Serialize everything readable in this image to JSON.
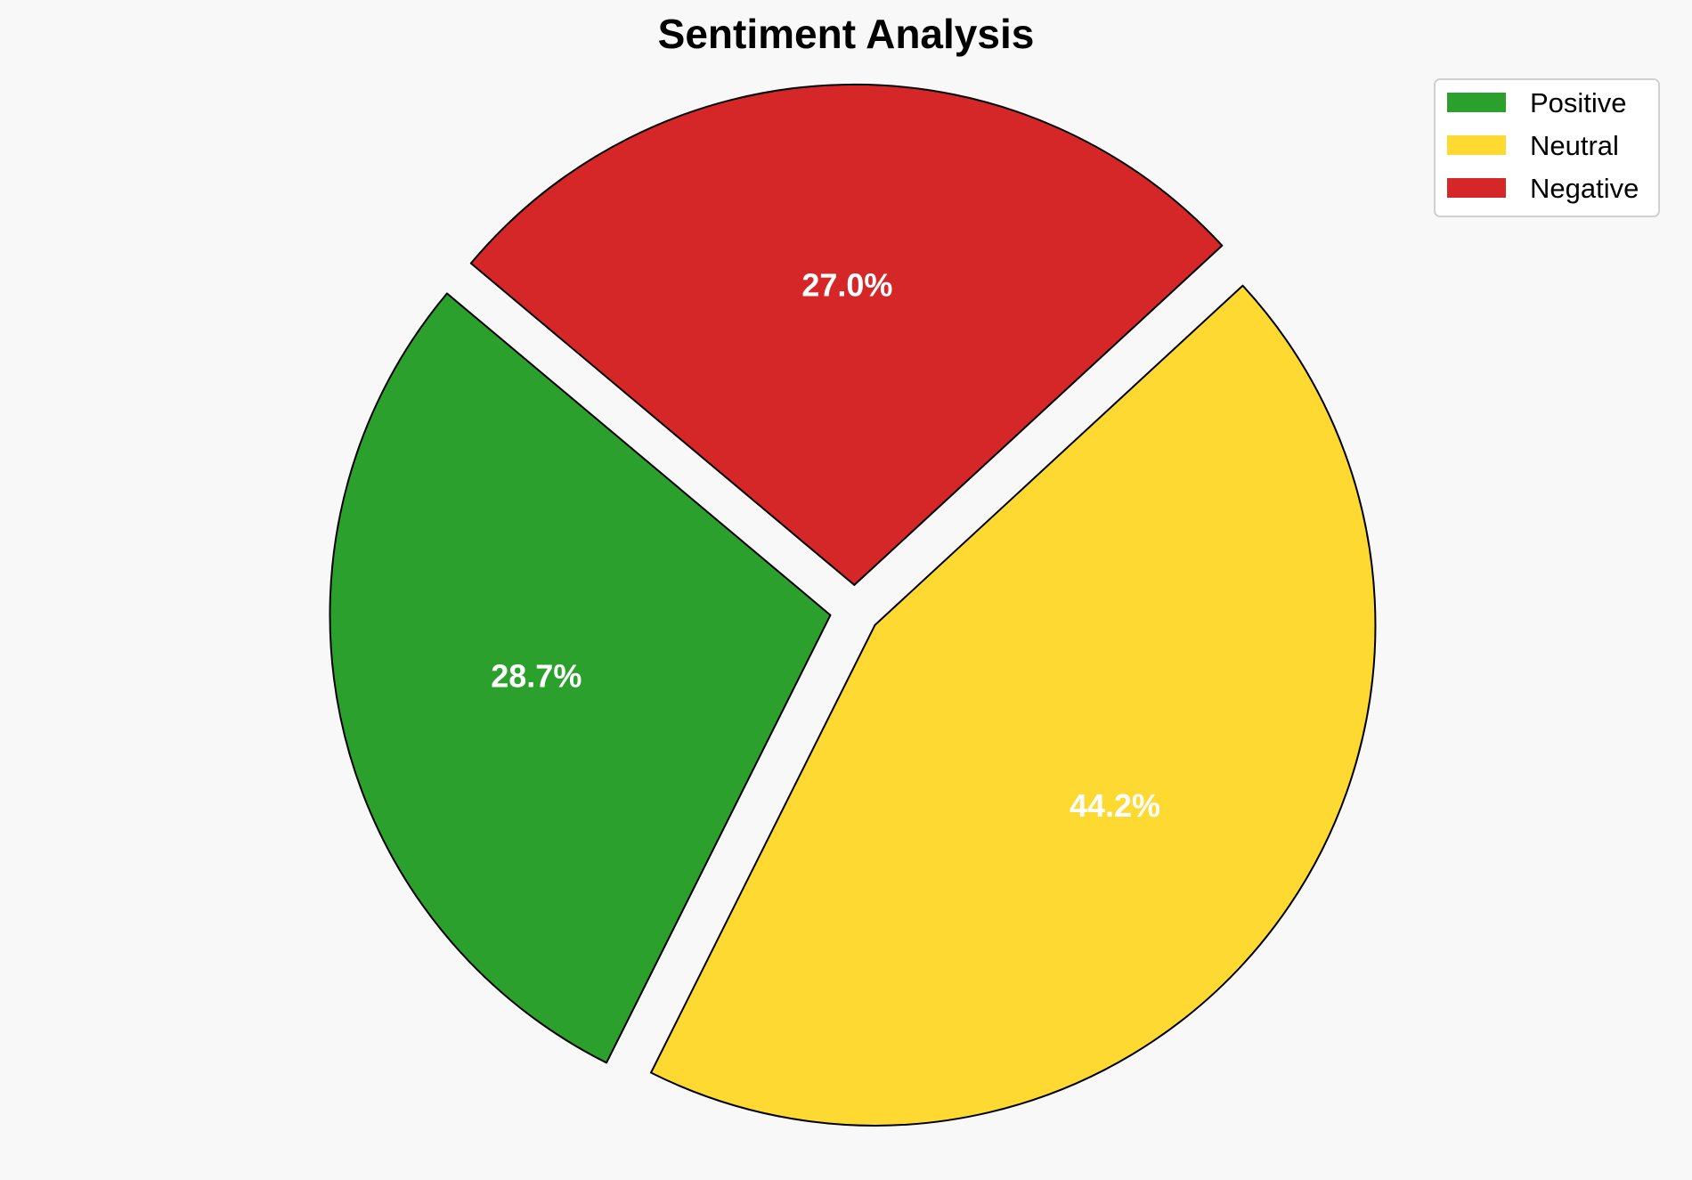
{
  "chart_data": {
    "type": "pie",
    "title": "Sentiment Analysis",
    "slices": [
      {
        "label": "Positive",
        "value": 28.7,
        "pct_label": "28.7%",
        "color": "#2ca02c"
      },
      {
        "label": "Neutral",
        "value": 44.2,
        "pct_label": "44.2%",
        "color": "#fdd931"
      },
      {
        "label": "Negative",
        "value": 27.0,
        "pct_label": "27.0%",
        "color": "#d62728"
      }
    ],
    "exploded": true,
    "legend": {
      "placement": "top-right",
      "entries": [
        "Positive",
        "Neutral",
        "Negative"
      ]
    },
    "edge_color": "#000000"
  }
}
